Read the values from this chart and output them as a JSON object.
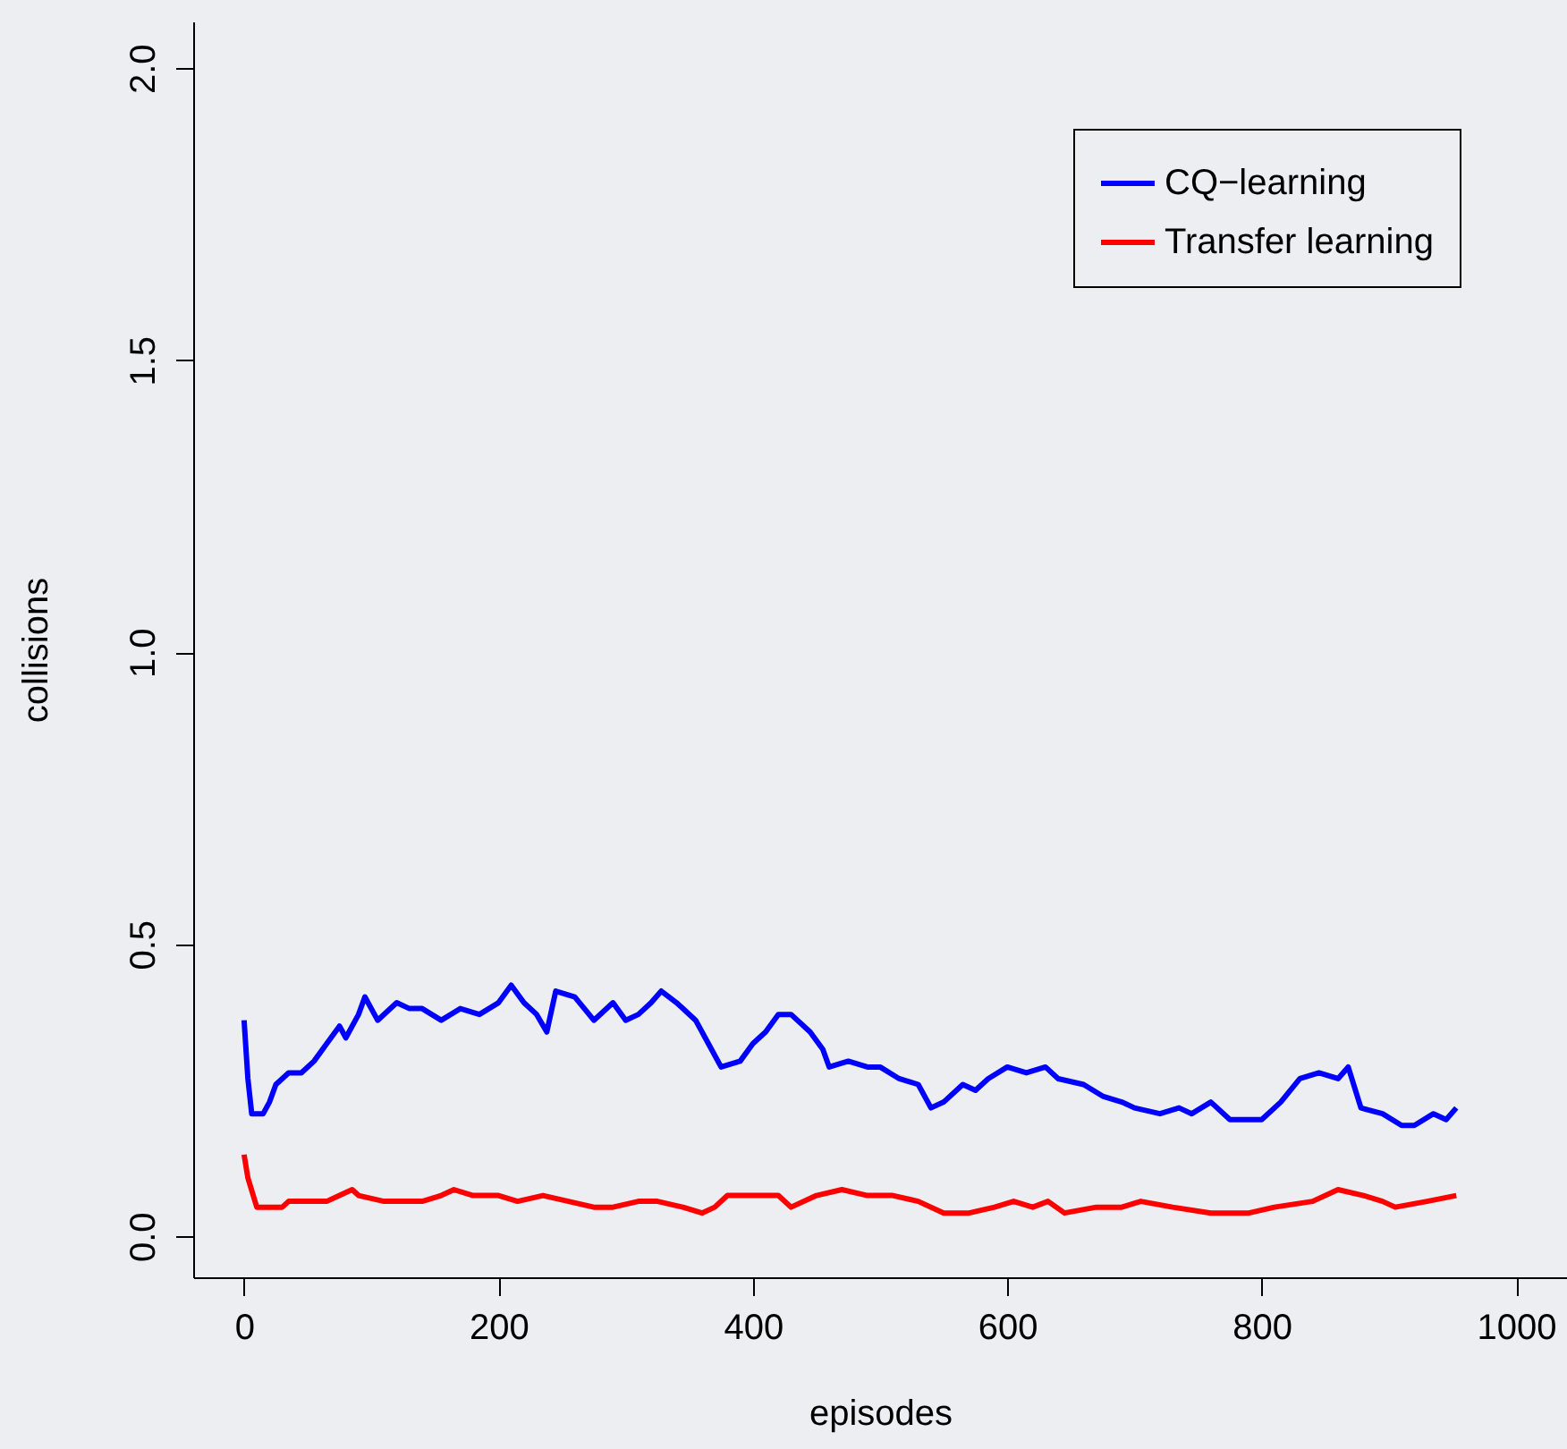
{
  "chart_data": {
    "type": "line",
    "xlabel": "episodes",
    "ylabel": "collisions",
    "xlim": [
      -40,
      1040
    ],
    "ylim": [
      -0.07,
      2.08
    ],
    "xticks": [
      0,
      200,
      400,
      600,
      800,
      1000
    ],
    "yticks": [
      {
        "value": 0,
        "label": "0.0"
      },
      {
        "value": 0.5,
        "label": "0.5"
      },
      {
        "value": 1,
        "label": "1.0"
      },
      {
        "value": 1.5,
        "label": "1.5"
      },
      {
        "value": 2,
        "label": "2.0"
      }
    ],
    "grid": false,
    "legend": "top right",
    "marker": "none",
    "line_style": "solid",
    "series": [
      {
        "name": "CQ−learning",
        "color": "#0000ff",
        "x": [
          0,
          3,
          6,
          15,
          20,
          25,
          35,
          45,
          55,
          65,
          75,
          80,
          90,
          95,
          100,
          105,
          120,
          130,
          140,
          155,
          170,
          185,
          200,
          210,
          220,
          230,
          238,
          245,
          260,
          275,
          290,
          300,
          310,
          320,
          328,
          340,
          355,
          365,
          375,
          390,
          400,
          410,
          420,
          430,
          445,
          455,
          460,
          475,
          490,
          500,
          515,
          530,
          540,
          550,
          565,
          575,
          585,
          600,
          615,
          630,
          640,
          660,
          675,
          690,
          700,
          720,
          735,
          745,
          760,
          775,
          790,
          800,
          815,
          830,
          845,
          860,
          868,
          878,
          895,
          910,
          920,
          935,
          945,
          953
        ],
        "values": [
          0.37,
          0.27,
          0.21,
          0.21,
          0.23,
          0.26,
          0.28,
          0.28,
          0.3,
          0.33,
          0.36,
          0.34,
          0.38,
          0.41,
          0.39,
          0.37,
          0.4,
          0.39,
          0.39,
          0.37,
          0.39,
          0.38,
          0.4,
          0.43,
          0.4,
          0.38,
          0.35,
          0.42,
          0.41,
          0.37,
          0.4,
          0.37,
          0.38,
          0.4,
          0.42,
          0.4,
          0.37,
          0.33,
          0.29,
          0.3,
          0.33,
          0.35,
          0.38,
          0.38,
          0.35,
          0.32,
          0.29,
          0.3,
          0.29,
          0.29,
          0.27,
          0.26,
          0.22,
          0.23,
          0.26,
          0.25,
          0.27,
          0.29,
          0.28,
          0.29,
          0.27,
          0.26,
          0.24,
          0.23,
          0.22,
          0.21,
          0.22,
          0.21,
          0.23,
          0.2,
          0.2,
          0.2,
          0.23,
          0.27,
          0.28,
          0.27,
          0.29,
          0.22,
          0.21,
          0.19,
          0.19,
          0.21,
          0.2,
          0.22
        ]
      },
      {
        "name": "Transfer learning",
        "color": "#ff0000",
        "x": [
          0,
          3,
          10,
          20,
          30,
          35,
          50,
          65,
          75,
          85,
          90,
          110,
          125,
          140,
          155,
          165,
          180,
          200,
          215,
          235,
          255,
          275,
          290,
          310,
          325,
          345,
          360,
          370,
          380,
          400,
          420,
          430,
          450,
          470,
          490,
          510,
          530,
          550,
          570,
          590,
          605,
          620,
          632,
          645,
          670,
          690,
          705,
          730,
          760,
          790,
          810,
          840,
          860,
          880,
          895,
          905,
          930,
          953
        ],
        "values": [
          0.14,
          0.1,
          0.05,
          0.05,
          0.05,
          0.06,
          0.06,
          0.06,
          0.07,
          0.08,
          0.07,
          0.06,
          0.06,
          0.06,
          0.07,
          0.08,
          0.07,
          0.07,
          0.06,
          0.07,
          0.06,
          0.05,
          0.05,
          0.06,
          0.06,
          0.05,
          0.04,
          0.05,
          0.07,
          0.07,
          0.07,
          0.05,
          0.07,
          0.08,
          0.07,
          0.07,
          0.06,
          0.04,
          0.04,
          0.05,
          0.06,
          0.05,
          0.06,
          0.04,
          0.05,
          0.05,
          0.06,
          0.05,
          0.04,
          0.04,
          0.05,
          0.06,
          0.08,
          0.07,
          0.06,
          0.05,
          0.06,
          0.07
        ]
      }
    ]
  }
}
